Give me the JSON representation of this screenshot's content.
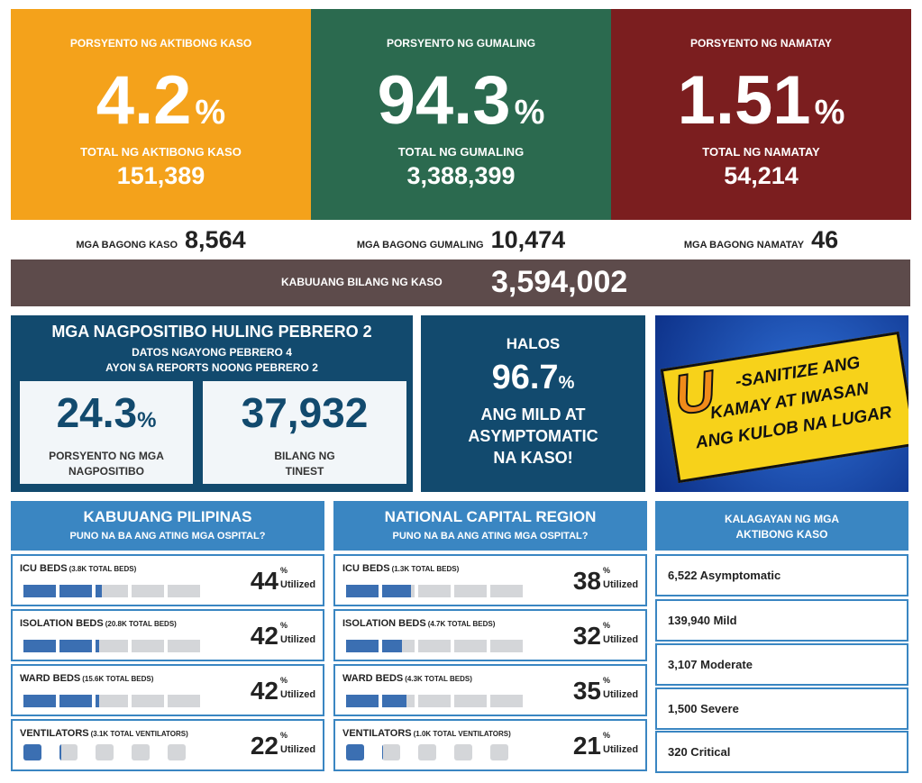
{
  "summary_cards": [
    {
      "title": "PORSYENTO NG AKTIBONG KASO",
      "percent": "4.2",
      "unit": "%",
      "total_label": "TOTAL NG AKTIBONG KASO",
      "total": "151,389",
      "color": "#f4a21b"
    },
    {
      "title": "PORSYENTO NG GUMALING",
      "percent": "94.3",
      "unit": "%",
      "total_label": "TOTAL NG GUMALING",
      "total": "3,388,399",
      "color": "#2b6a4f"
    },
    {
      "title": "PORSYENTO NG NAMATAY",
      "percent": "1.51",
      "unit": "%",
      "total_label": "TOTAL NG NAMATAY",
      "total": "54,214",
      "color": "#7b1e1f"
    }
  ],
  "new_counts": [
    {
      "label": "MGA BAGONG KASO",
      "value": "8,564"
    },
    {
      "label": "MGA BAGONG GUMALING",
      "value": "10,474"
    },
    {
      "label": "MGA BAGONG NAMATAY",
      "value": "46"
    }
  ],
  "total_cases": {
    "label": "KABUUANG BILANG NG KASO",
    "value": "3,594,002"
  },
  "positivity": {
    "title": "MGA NAGPOSITIBO HULING PEBRERO 2",
    "subtitle": [
      "DATOS NGAYONG PEBRERO 4",
      "AYON SA REPORTS NOONG PEBRERO 2"
    ],
    "rate": {
      "value": "24.3",
      "unit": "%",
      "label": [
        "PORSYENTO NG MGA",
        "NAGPOSITIBO"
      ]
    },
    "tested": {
      "value": "37,932",
      "label": [
        "BILANG NG",
        "TINEST"
      ]
    }
  },
  "mild": {
    "prefix": "HALOS",
    "value": "96.7",
    "unit": "%",
    "text": [
      "ANG MILD AT",
      "ASYMPTOMATIC",
      "NA KASO!"
    ]
  },
  "banner": {
    "letter": "U",
    "lines": [
      "-SANITIZE ANG",
      "KAMAY AT IWASAN",
      "ANG KULOB NA LUGAR"
    ]
  },
  "hospitals": [
    {
      "title": "KABUUANG PILIPINAS",
      "subtitle": "PUNO NA BA ANG ATING MGA OSPITAL?",
      "rows": [
        {
          "label": "ICU BEDS",
          "capacity": "(3.8K TOTAL BEDS)",
          "value": 44,
          "unit": "%",
          "suffix": "Utilized"
        },
        {
          "label": "ISOLATION BEDS",
          "capacity": "(20.8K TOTAL BEDS)",
          "value": 42,
          "unit": "%",
          "suffix": "Utilized"
        },
        {
          "label": "WARD BEDS",
          "capacity": "(15.6K TOTAL BEDS)",
          "value": 42,
          "unit": "%",
          "suffix": "Utilized"
        },
        {
          "label": "VENTILATORS",
          "capacity": "(3.1K TOTAL VENTILATORS)",
          "value": 22,
          "unit": "%",
          "suffix": "Utilized"
        }
      ]
    },
    {
      "title": "NATIONAL CAPITAL REGION",
      "subtitle": "PUNO NA BA ANG ATING MGA OSPITAL?",
      "rows": [
        {
          "label": "ICU BEDS",
          "capacity": "(1.3K TOTAL BEDS)",
          "value": 38,
          "unit": "%",
          "suffix": "Utilized"
        },
        {
          "label": "ISOLATION BEDS",
          "capacity": "(4.7K TOTAL BEDS)",
          "value": 32,
          "unit": "%",
          "suffix": "Utilized"
        },
        {
          "label": "WARD BEDS",
          "capacity": "(4.3K TOTAL BEDS)",
          "value": 35,
          "unit": "%",
          "suffix": "Utilized"
        },
        {
          "label": "VENTILATORS",
          "capacity": "(1.0K TOTAL VENTILATORS)",
          "value": 21,
          "unit": "%",
          "suffix": "Utilized"
        }
      ]
    }
  ],
  "status": {
    "title": [
      "KALAGAYAN NG MGA",
      "AKTIBONG KASO"
    ],
    "items": [
      "6,522 Asymptomatic",
      "139,940 Mild",
      "3,107 Moderate",
      "1,500 Severe",
      "320 Critical"
    ]
  }
}
